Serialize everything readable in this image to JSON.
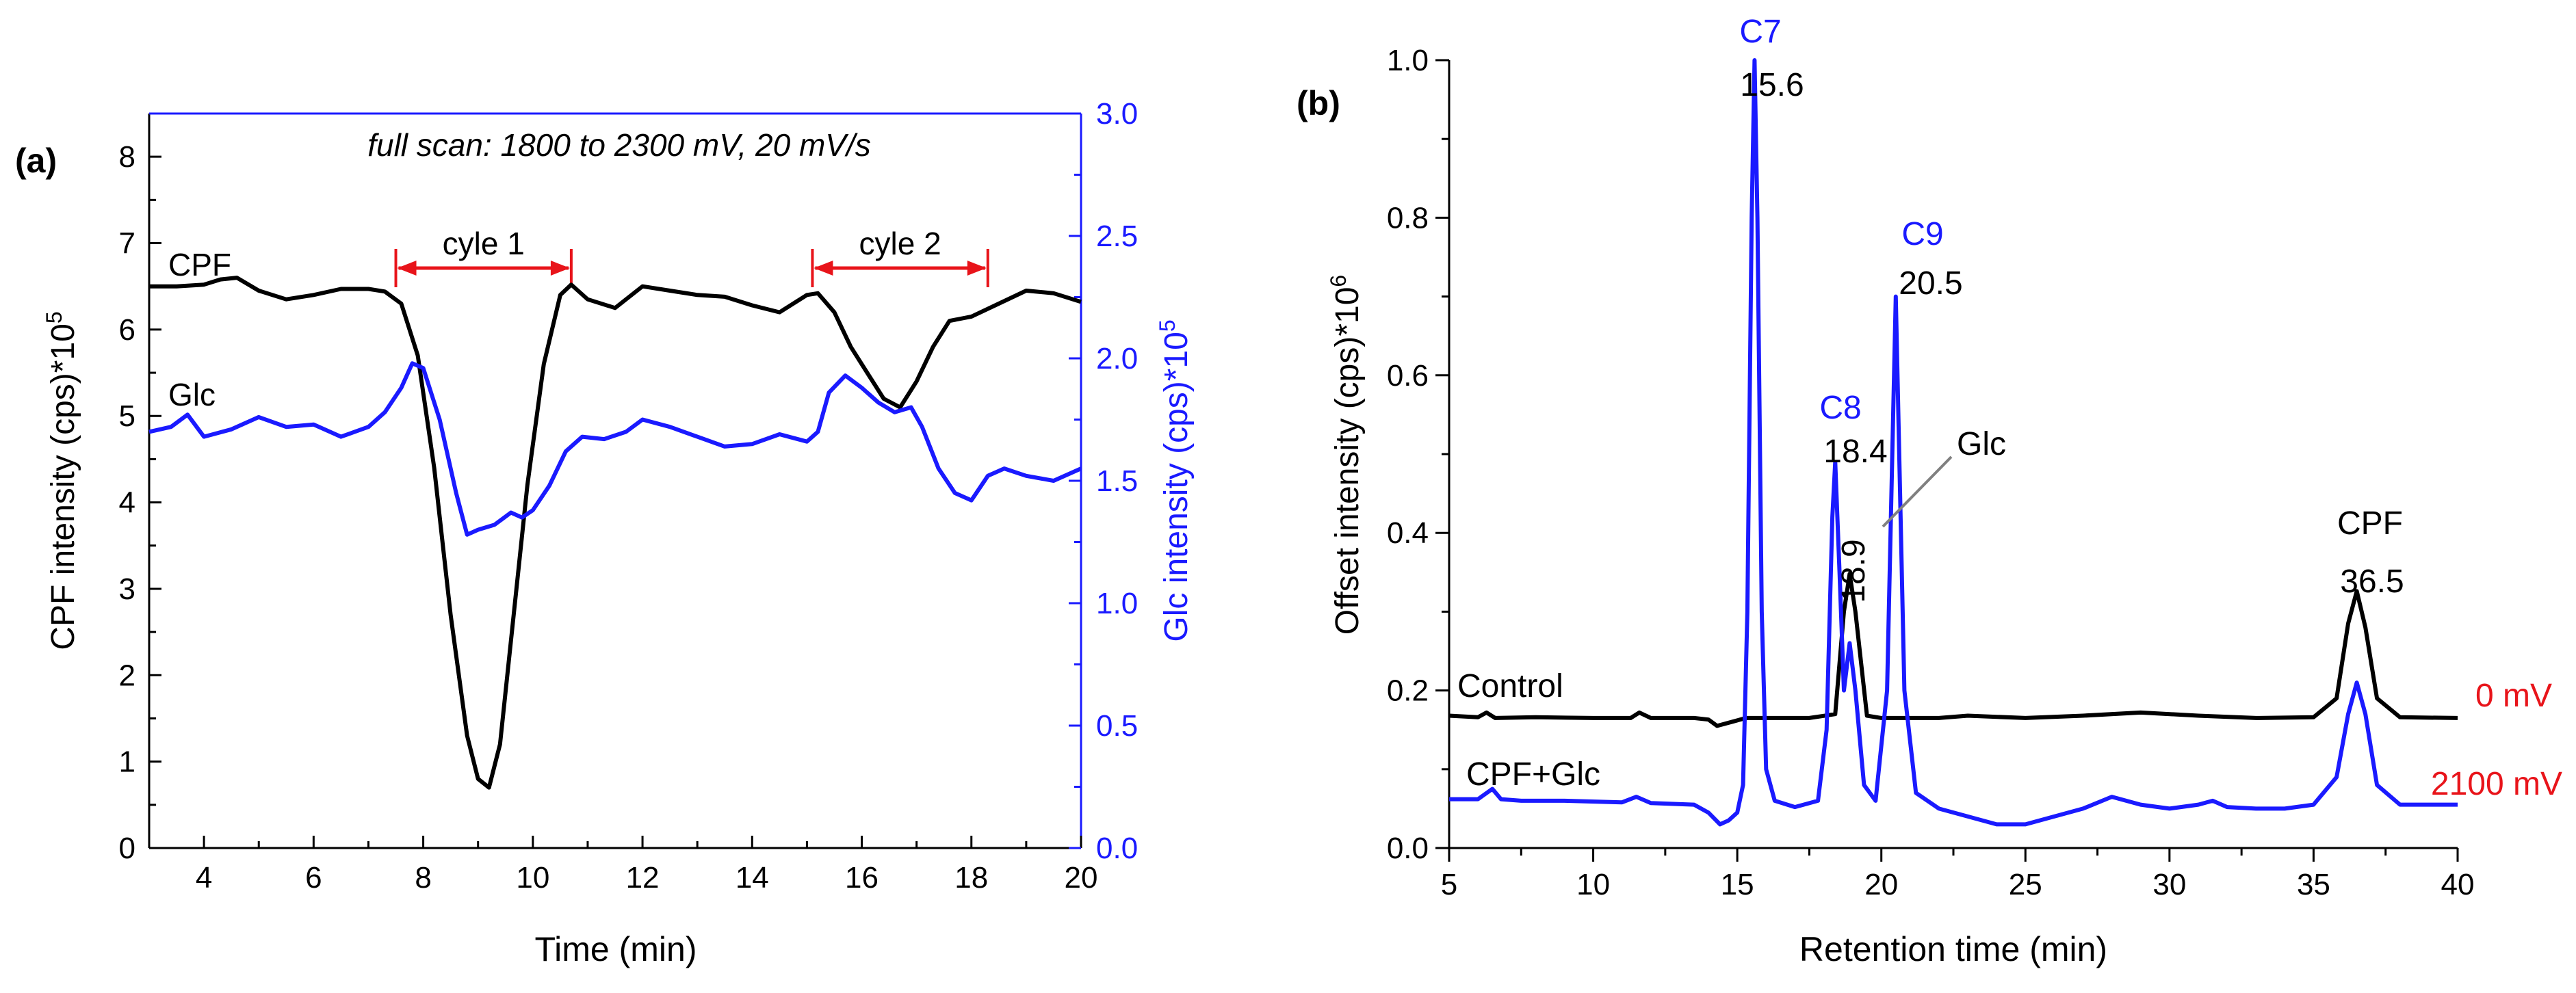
{
  "chart_data": [
    {
      "type": "line",
      "panel_label": "(a)",
      "annotation": "full scan: 1800 to 2300 mV, 20 mV/s",
      "xlabel": "Time (min)",
      "ylabel_left": "CPF intensity (cps)*10",
      "ylabel_left_exp": "5",
      "ylabel_right": "Glc intensity (cps)*10",
      "ylabel_right_exp": "5",
      "xlim": [
        3,
        20
      ],
      "ylim_left": [
        0,
        8.5
      ],
      "ylim_right": [
        0,
        3.0
      ],
      "xticks": [
        "4",
        "6",
        "8",
        "10",
        "12",
        "14",
        "16",
        "18",
        "20"
      ],
      "yticks_left": [
        "0",
        "1",
        "2",
        "3",
        "4",
        "5",
        "6",
        "7",
        "8"
      ],
      "yticks_right": [
        "0.0",
        "0.5",
        "1.0",
        "1.5",
        "2.0",
        "2.5",
        "3.0"
      ],
      "cycles": [
        {
          "label": "cyle 1",
          "start": 7.5,
          "end": 10.7
        },
        {
          "label": "cyle 2",
          "start": 15.1,
          "end": 18.3
        }
      ],
      "series": [
        {
          "name": "CPF",
          "axis": "left",
          "color": "#000000",
          "x": [
            3.0,
            3.5,
            4.0,
            4.3,
            4.6,
            5.0,
            5.5,
            6.0,
            6.5,
            7.0,
            7.3,
            7.6,
            7.9,
            8.2,
            8.5,
            8.8,
            9.0,
            9.2,
            9.4,
            9.6,
            9.9,
            10.2,
            10.5,
            10.7,
            11.0,
            11.5,
            12.0,
            12.5,
            13.0,
            13.5,
            14.0,
            14.5,
            15.0,
            15.2,
            15.5,
            15.8,
            16.1,
            16.4,
            16.7,
            17.0,
            17.3,
            17.6,
            18.0,
            18.5,
            19.0,
            19.5,
            20.0
          ],
          "y": [
            6.5,
            6.5,
            6.52,
            6.58,
            6.6,
            6.45,
            6.35,
            6.4,
            6.47,
            6.47,
            6.44,
            6.3,
            5.7,
            4.4,
            2.7,
            1.3,
            0.8,
            0.7,
            1.2,
            2.4,
            4.2,
            5.6,
            6.4,
            6.52,
            6.35,
            6.25,
            6.5,
            6.45,
            6.4,
            6.38,
            6.28,
            6.2,
            6.4,
            6.42,
            6.2,
            5.8,
            5.5,
            5.2,
            5.1,
            5.4,
            5.8,
            6.1,
            6.15,
            6.3,
            6.45,
            6.42,
            6.32
          ]
        },
        {
          "name": "Glc",
          "axis": "right",
          "color": "#1a1aff",
          "x": [
            3.0,
            3.4,
            3.7,
            4.0,
            4.5,
            5.0,
            5.5,
            6.0,
            6.5,
            7.0,
            7.3,
            7.6,
            7.8,
            8.0,
            8.3,
            8.6,
            8.8,
            9.0,
            9.3,
            9.6,
            9.8,
            10.0,
            10.3,
            10.6,
            10.9,
            11.3,
            11.7,
            12.0,
            12.5,
            13.0,
            13.5,
            14.0,
            14.5,
            15.0,
            15.2,
            15.4,
            15.7,
            16.0,
            16.3,
            16.6,
            16.9,
            17.1,
            17.4,
            17.7,
            18.0,
            18.3,
            18.6,
            19.0,
            19.5,
            20.0
          ],
          "y": [
            1.7,
            1.72,
            1.77,
            1.68,
            1.71,
            1.76,
            1.72,
            1.73,
            1.68,
            1.72,
            1.78,
            1.88,
            1.98,
            1.96,
            1.75,
            1.45,
            1.28,
            1.3,
            1.32,
            1.37,
            1.35,
            1.38,
            1.48,
            1.62,
            1.68,
            1.67,
            1.7,
            1.75,
            1.72,
            1.68,
            1.64,
            1.65,
            1.69,
            1.66,
            1.7,
            1.86,
            1.93,
            1.88,
            1.82,
            1.78,
            1.8,
            1.72,
            1.55,
            1.45,
            1.42,
            1.52,
            1.55,
            1.52,
            1.5,
            1.55
          ]
        }
      ],
      "series_labels": {
        "cpf": "CPF",
        "glc": "Glc"
      }
    },
    {
      "type": "line",
      "panel_label": "(b)",
      "xlabel": "Retention time (min)",
      "ylabel": "Offset intensity (cps)*10",
      "ylabel_exp": "6",
      "xlim": [
        5,
        40
      ],
      "ylim": [
        0,
        1.0
      ],
      "xticks": [
        "5",
        "10",
        "15",
        "20",
        "25",
        "30",
        "35",
        "40"
      ],
      "yticks": [
        "0.0",
        "0.2",
        "0.4",
        "0.6",
        "0.8",
        "1.0"
      ],
      "series": [
        {
          "name": "Control",
          "color": "#000000",
          "end_label": "0 mV",
          "x": [
            5,
            6,
            6.3,
            6.6,
            8,
            10,
            11.3,
            11.6,
            12.0,
            13.5,
            14.0,
            14.3,
            14.8,
            15.3,
            17.5,
            18.4,
            18.7,
            18.9,
            19.1,
            19.5,
            20,
            22,
            23,
            25,
            27,
            29,
            31,
            33,
            35,
            35.8,
            36.2,
            36.5,
            36.8,
            37.2,
            38,
            40
          ],
          "y": [
            0.168,
            0.166,
            0.172,
            0.165,
            0.166,
            0.165,
            0.165,
            0.172,
            0.165,
            0.165,
            0.163,
            0.155,
            0.16,
            0.165,
            0.165,
            0.17,
            0.3,
            0.348,
            0.3,
            0.168,
            0.165,
            0.165,
            0.168,
            0.165,
            0.168,
            0.172,
            0.168,
            0.165,
            0.166,
            0.19,
            0.285,
            0.326,
            0.28,
            0.19,
            0.166,
            0.165
          ]
        },
        {
          "name": "CPF+Glc",
          "color": "#1a1aff",
          "end_label": "2100 mV",
          "x": [
            5,
            6,
            6.5,
            6.8,
            7.5,
            9,
            11,
            11.5,
            12,
            13.5,
            14.0,
            14.4,
            14.7,
            15.0,
            15.2,
            15.35,
            15.5,
            15.6,
            15.7,
            15.85,
            16.0,
            16.3,
            17.0,
            17.8,
            18.1,
            18.3,
            18.4,
            18.55,
            18.7,
            18.9,
            19.1,
            19.4,
            19.8,
            20.2,
            20.5,
            20.8,
            21.2,
            22,
            23,
            24,
            25,
            26,
            27,
            28,
            29,
            30,
            31,
            31.5,
            32,
            33,
            34,
            35,
            35.8,
            36.2,
            36.5,
            36.8,
            37.2,
            38,
            40
          ],
          "y": [
            0.062,
            0.062,
            0.075,
            0.062,
            0.06,
            0.06,
            0.058,
            0.065,
            0.057,
            0.055,
            0.045,
            0.03,
            0.035,
            0.045,
            0.08,
            0.3,
            0.8,
            1.0,
            0.8,
            0.3,
            0.1,
            0.06,
            0.052,
            0.06,
            0.15,
            0.42,
            0.49,
            0.35,
            0.2,
            0.26,
            0.2,
            0.08,
            0.06,
            0.2,
            0.7,
            0.2,
            0.07,
            0.05,
            0.04,
            0.03,
            0.03,
            0.04,
            0.05,
            0.065,
            0.055,
            0.05,
            0.055,
            0.06,
            0.052,
            0.05,
            0.05,
            0.055,
            0.09,
            0.17,
            0.21,
            0.17,
            0.08,
            0.055,
            0.055
          ]
        }
      ],
      "series_labels": {
        "control": "Control",
        "mix": "CPF+Glc"
      },
      "peak_annotations": [
        {
          "name": "C7",
          "rt": "15.6",
          "x": 15.6,
          "y": 1.0
        },
        {
          "name": "C8",
          "rt": "18.4",
          "x": 18.4,
          "y": 0.49
        },
        {
          "name": "C9",
          "rt": "20.5",
          "x": 20.5,
          "y": 0.7
        },
        {
          "name": "CPF",
          "rt": "36.5",
          "x": 36.5,
          "y": 0.326
        }
      ],
      "glc_annotation": {
        "label": "Glc",
        "rt": "18.9"
      }
    }
  ]
}
